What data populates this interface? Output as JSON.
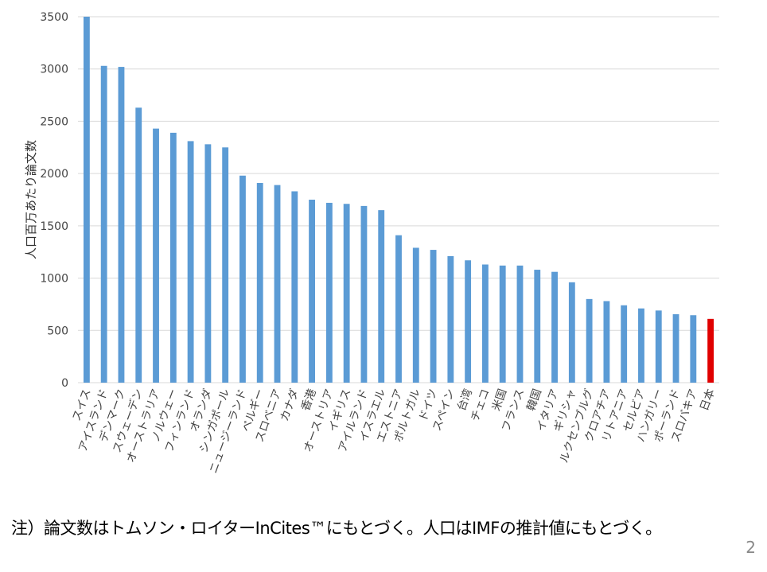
{
  "chart_data": {
    "type": "bar",
    "ylabel": "人口百万あたり論文数",
    "ylim": [
      0,
      3500
    ],
    "yticks": [
      0,
      500,
      1000,
      1500,
      2000,
      2500,
      3000,
      3500
    ],
    "grid": true,
    "categories": [
      "スイス",
      "アイスランド",
      "デンマーク",
      "スウェーデン",
      "オーストラリア",
      "ノルウェー",
      "フィンランド",
      "オランダ",
      "シンガポール",
      "ニュージーランド",
      "ベルギー",
      "スロベニア",
      "カナダ",
      "香港",
      "オーストリア",
      "イギリス",
      "アイルランド",
      "イスラエル",
      "エストニア",
      "ポルトガル",
      "ドイツ",
      "スペイン",
      "台湾",
      "チェコ",
      "米国",
      "フランス",
      "韓国",
      "イタリア",
      "ギリシャ",
      "ルクセンブルグ",
      "クロアチア",
      "リトアニア",
      "セルビア",
      "ハンガリー",
      "ポーランド",
      "スロバキア",
      "日本"
    ],
    "values": [
      3500,
      3030,
      3020,
      2630,
      2430,
      2390,
      2310,
      2280,
      2250,
      1980,
      1910,
      1890,
      1830,
      1750,
      1720,
      1710,
      1690,
      1650,
      1410,
      1290,
      1270,
      1210,
      1170,
      1130,
      1120,
      1120,
      1080,
      1060,
      960,
      800,
      780,
      740,
      710,
      690,
      655,
      645,
      610
    ],
    "colors": {
      "default": "#5B9BD5",
      "highlight": "#E00000"
    },
    "highlight_category": "日本"
  },
  "footer": {
    "note": "注）論文数はトムソン・ロイターInCites™にもとづく。人口はIMFの推計値にもとづく。",
    "page_number": "2"
  }
}
